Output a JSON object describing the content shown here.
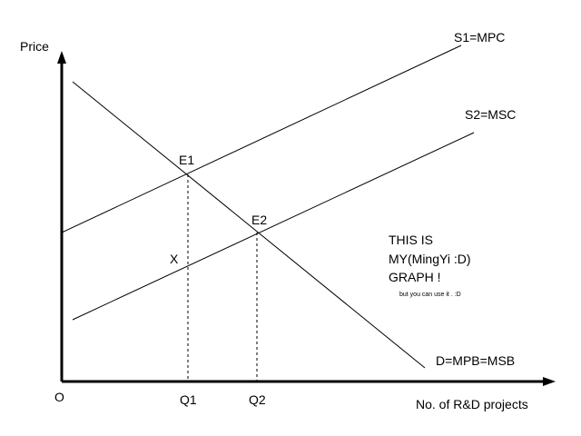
{
  "axes": {
    "y_label": "Price",
    "x_label": "No. of R&D projects",
    "origin": "O"
  },
  "curves": {
    "s1": "S1=MPC",
    "s2": "S2=MSC",
    "d": "D=MPB=MSB"
  },
  "points": {
    "e1": "E1",
    "e2": "E2",
    "x": "X",
    "q1": "Q1",
    "q2": "Q2"
  },
  "note": {
    "lines": [
      "THIS IS",
      "MY(MingYi :D)",
      "GRAPH !"
    ],
    "small": "but you can use it . :D"
  }
}
